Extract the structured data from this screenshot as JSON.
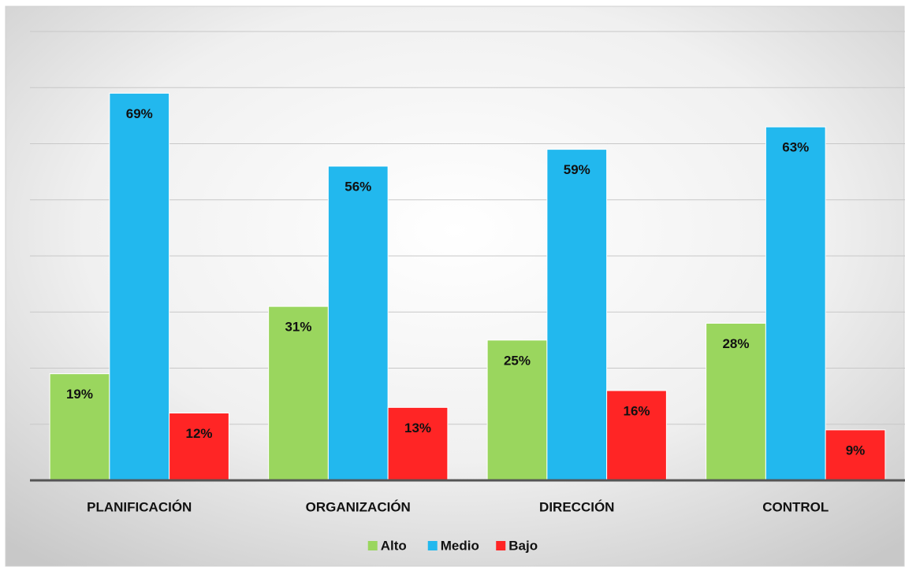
{
  "chart_data": {
    "type": "bar",
    "categories": [
      "PLANIFICACIÓN",
      "ORGANIZACIÓN",
      "DIRECCIÓN",
      "CONTROL"
    ],
    "series": [
      {
        "name": "Alto",
        "color": "#9ad65e",
        "values": [
          19,
          31,
          25,
          28
        ],
        "value_labels": [
          "19%",
          "31%",
          "25%",
          "28%"
        ]
      },
      {
        "name": "Medio",
        "color": "#22b8ee",
        "values": [
          69,
          56,
          59,
          63
        ],
        "value_labels": [
          "69%",
          "56%",
          "59%",
          "63%"
        ]
      },
      {
        "name": "Bajo",
        "color": "#ff2525",
        "values": [
          12,
          13,
          16,
          9
        ],
        "value_labels": [
          "12%",
          "13%",
          "16%",
          "9%"
        ]
      }
    ],
    "ylim": [
      0,
      80
    ],
    "yticks": [
      0,
      10,
      20,
      30,
      40,
      50,
      60,
      70,
      80
    ],
    "grid": true,
    "legend": "bottom"
  }
}
